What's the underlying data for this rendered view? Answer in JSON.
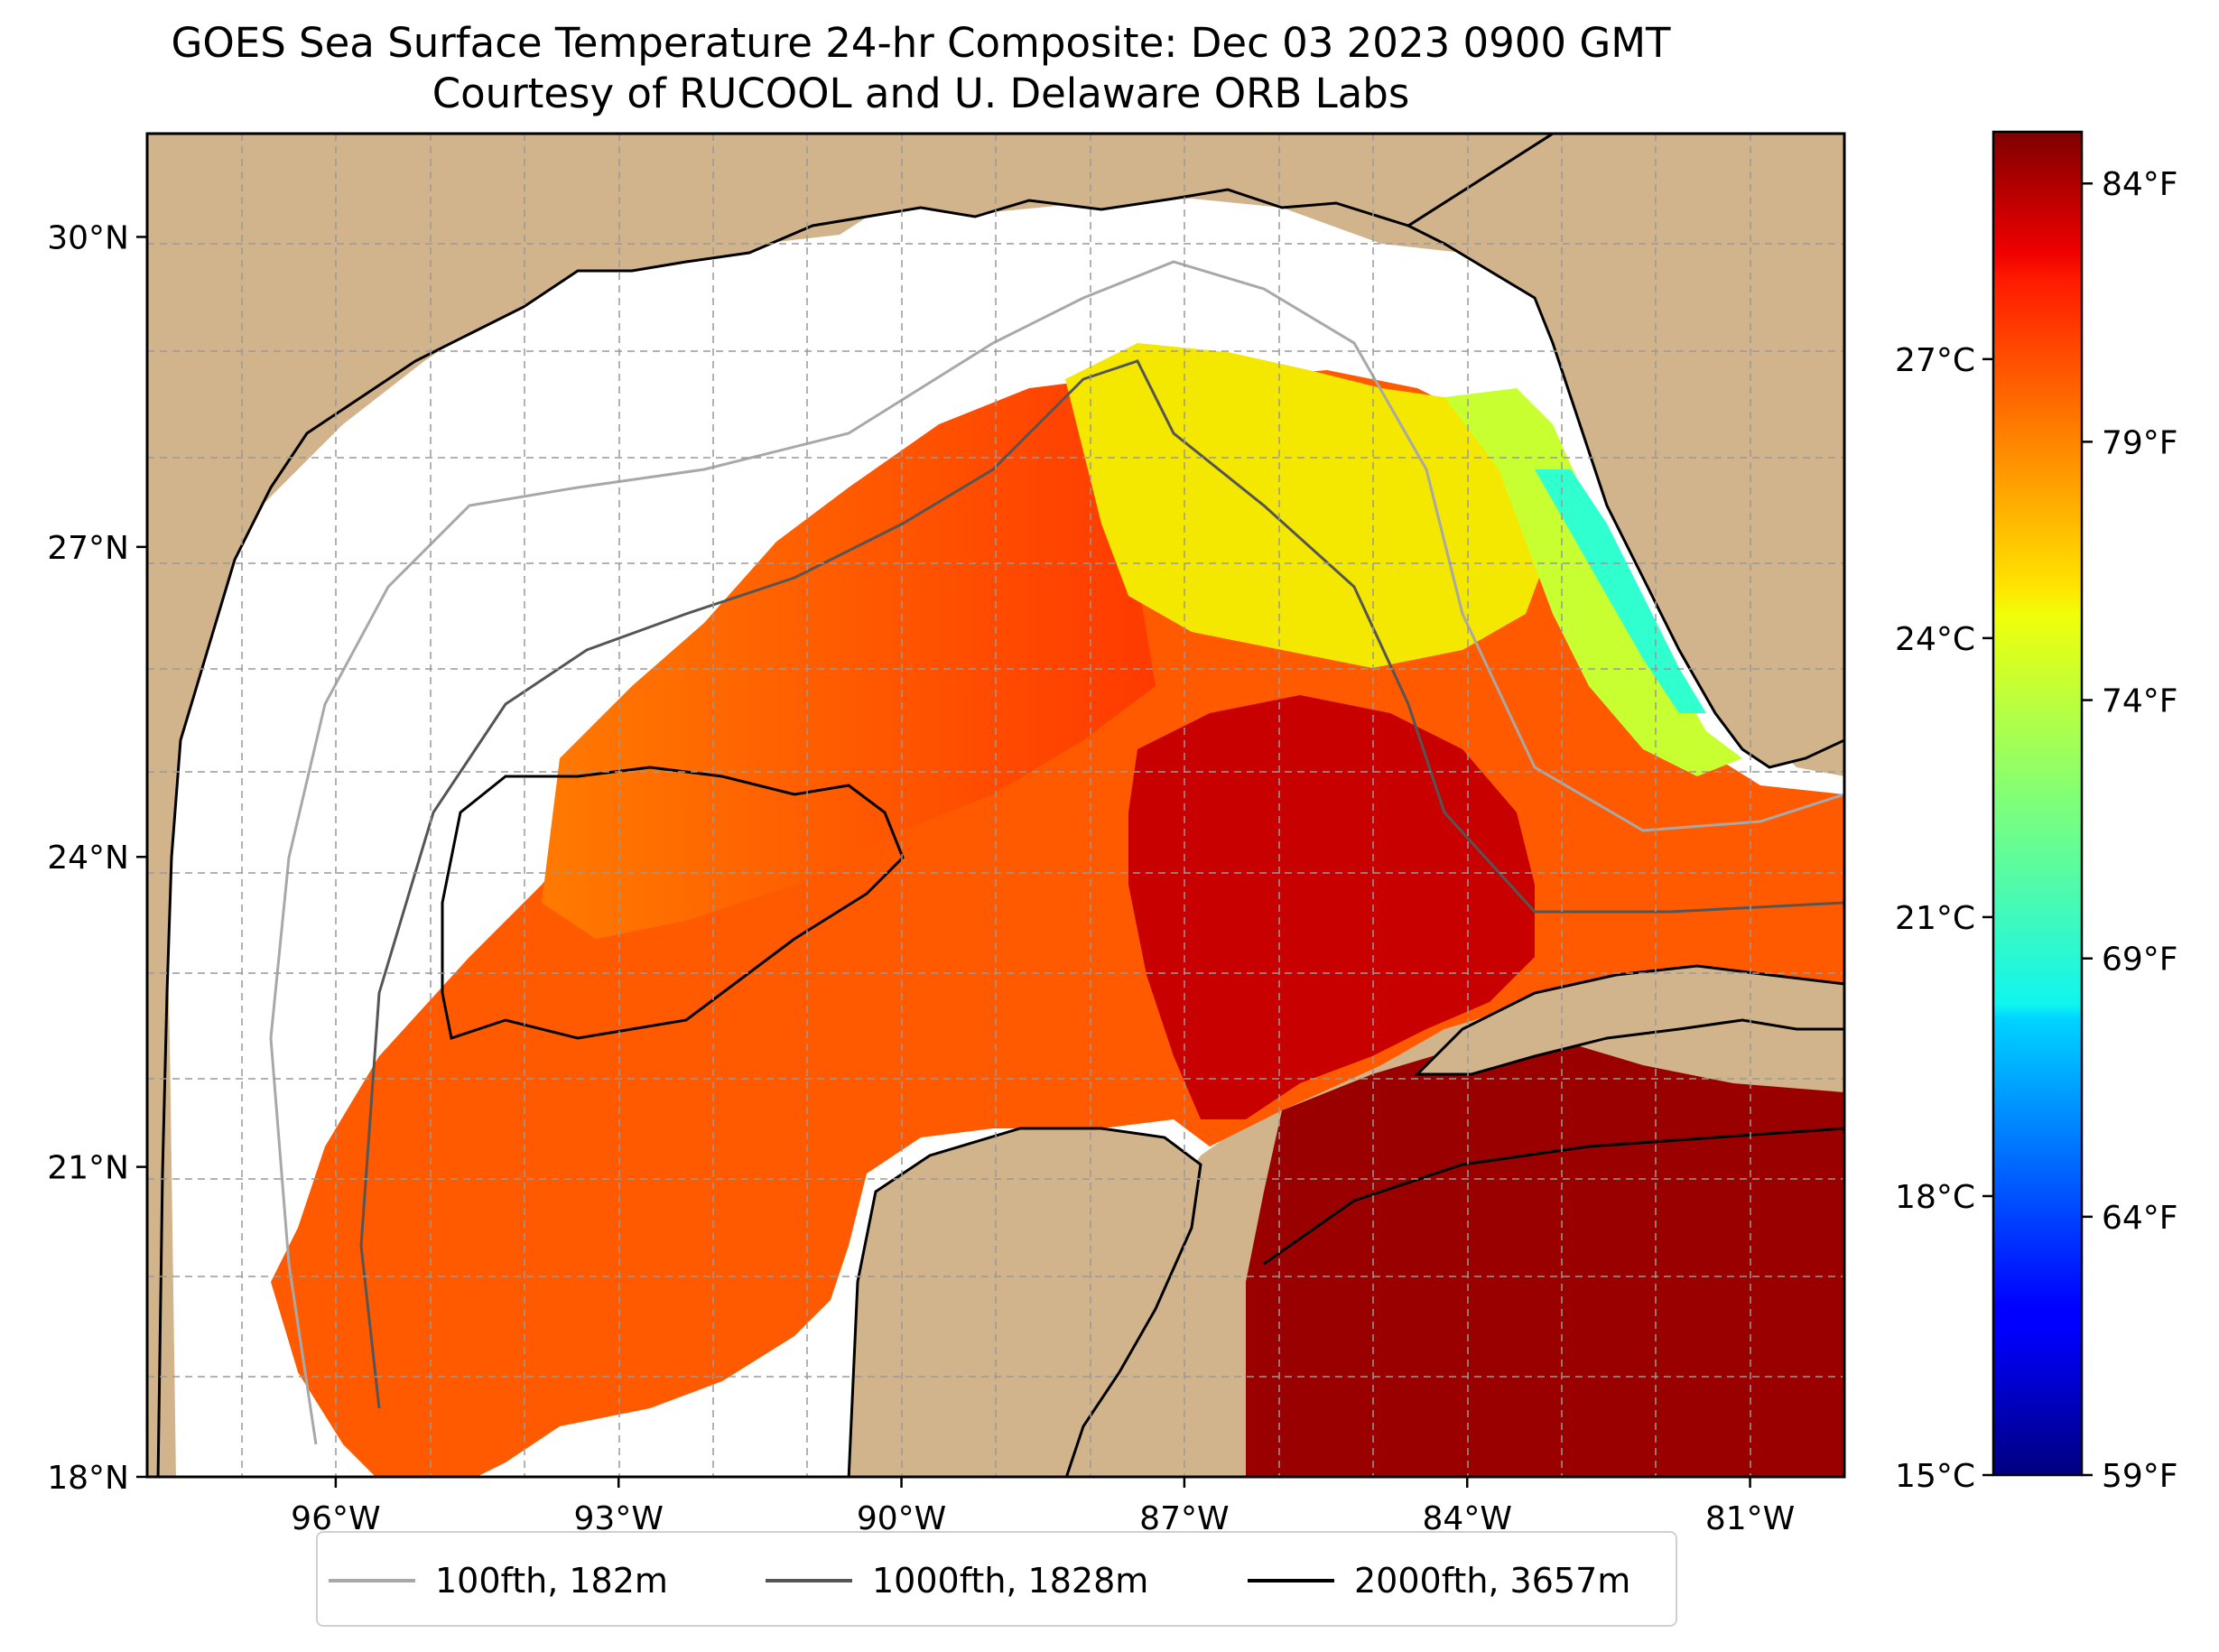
{
  "title": {
    "line1": "GOES Sea Surface Temperature 24-hr Composite: Dec 03 2023 0900 GMT",
    "line2": "Courtesy of RUCOOL and U. Delaware ORB Labs"
  },
  "map": {
    "lon_range": [
      -98,
      -80
    ],
    "lat_range": [
      18,
      31
    ],
    "lon_ticks": [
      {
        "value": -96,
        "label": "96°W"
      },
      {
        "value": -93,
        "label": "93°W"
      },
      {
        "value": -90,
        "label": "90°W"
      },
      {
        "value": -87,
        "label": "87°W"
      },
      {
        "value": -84,
        "label": "84°W"
      },
      {
        "value": -81,
        "label": "81°W"
      }
    ],
    "lat_ticks": [
      {
        "value": 30,
        "label": "30°N"
      },
      {
        "value": 27,
        "label": "27°N"
      },
      {
        "value": 24,
        "label": "24°N"
      },
      {
        "value": 21,
        "label": "21°N"
      },
      {
        "value": 18,
        "label": "18°N"
      }
    ],
    "land_color": "#d2b48c",
    "nodata_color": "#ffffff"
  },
  "colorbar": {
    "colormap": "jet",
    "min_f": 59,
    "max_f": 85,
    "f_ticks": [
      {
        "value": 84,
        "label": "84°F"
      },
      {
        "value": 79,
        "label": "79°F"
      },
      {
        "value": 74,
        "label": "74°F"
      },
      {
        "value": 69,
        "label": "69°F"
      },
      {
        "value": 64,
        "label": "64°F"
      },
      {
        "value": 59,
        "label": "59°F"
      }
    ],
    "c_ticks": [
      {
        "value": 27,
        "label": "27°C"
      },
      {
        "value": 24,
        "label": "24°C"
      },
      {
        "value": 21,
        "label": "21°C"
      },
      {
        "value": 18,
        "label": "18°C"
      },
      {
        "value": 15,
        "label": "15°C"
      }
    ]
  },
  "legend": {
    "items": [
      {
        "label": "100fth, 182m",
        "color": "#a8a8a8"
      },
      {
        "label": "1000fth, 1828m",
        "color": "#555555"
      },
      {
        "label": "2000fth, 3657m",
        "color": "#000000"
      }
    ]
  }
}
